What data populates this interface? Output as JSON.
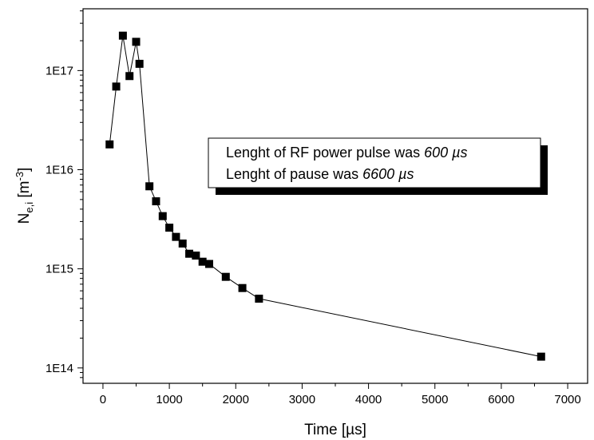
{
  "chart_data": {
    "type": "scatter",
    "xlabel": "Time [µs]",
    "ylabel": "N",
    "ylabel_sub": "e,i",
    "ylabel_unit_open": " [m",
    "ylabel_unit_sup": "-3",
    "ylabel_unit_close": "]",
    "xlim": [
      -300,
      7300
    ],
    "ylim": [
      70000000000000.0,
      4.2e+17
    ],
    "y_scale": "log",
    "x_ticks": [
      0,
      1000,
      2000,
      3000,
      4000,
      5000,
      6000,
      7000
    ],
    "x_tick_labels": [
      "0",
      "1000",
      "2000",
      "3000",
      "4000",
      "5000",
      "6000",
      "7000"
    ],
    "y_ticks": [
      100000000000000.0,
      1000000000000000.0,
      1e+16,
      1e+17
    ],
    "y_tick_labels": [
      "1E14",
      "1E15",
      "1E16",
      "1E17"
    ],
    "grid": false,
    "series": [
      {
        "x": [
          100,
          200,
          300,
          400,
          500,
          550,
          700,
          800,
          900,
          1000,
          1100,
          1200,
          1300,
          1400,
          1500,
          1600,
          1850,
          2100,
          2350,
          6600
        ],
        "y": [
          1.8e+16,
          6.9e+16,
          2.25e+17,
          8.8e+16,
          1.95e+17,
          1.17e+17,
          6800000000000000.0,
          4800000000000000.0,
          3400000000000000.0,
          2600000000000000.0,
          2100000000000000.0,
          1800000000000000.0,
          1420000000000000.0,
          1360000000000000.0,
          1180000000000000.0,
          1120000000000000.0,
          830000000000000.0,
          640000000000000.0,
          500000000000000.0,
          130000000000000.0
        ]
      }
    ],
    "legend": {
      "placement": "upper-right",
      "line1_prefix": "Lenght of RF power pulse was ",
      "line1_value": "600 µs",
      "line2_prefix": "Lenght of pause was ",
      "line2_value": "6600 µs"
    }
  }
}
